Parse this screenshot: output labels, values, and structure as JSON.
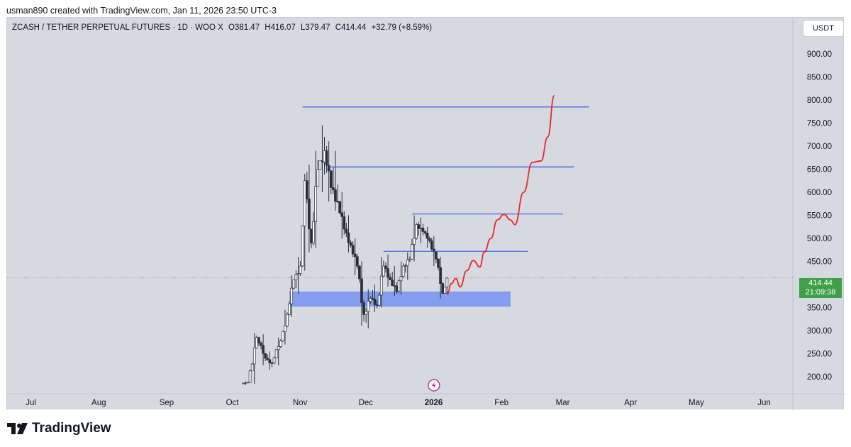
{
  "credit": "usman890 created with TradingView.com, Jan 11, 2026 23:50 UTC-3",
  "header": {
    "symbol": "ZCASH / TETHER PERPETUAL FUTURES · 1D · WOO X",
    "open": "O381.47",
    "high": "H416.07",
    "low": "L379.47",
    "close": "C414.44",
    "change": "+32.79 (+8.59%)"
  },
  "currency_button": "USDT",
  "price_tag": {
    "price": "414.44",
    "countdown": "21:09:38"
  },
  "brand": {
    "name": "TradingView",
    "icon": "tradingview-logo-icon"
  },
  "colors": {
    "chart_bg": "#d6d9e0",
    "up": "#ffffff",
    "down": "#2a2e39",
    "level_line": "#2f5bea",
    "zone": "#7b96ef",
    "projection": "#ea2a2a",
    "price_tag": "#3fa049"
  },
  "chart_data": {
    "type": "candlestick",
    "title": "ZCASH / TETHER PERPETUAL FUTURES · 1D · WOO X",
    "y_axis": {
      "ticks": [
        200,
        250,
        300,
        350,
        400,
        450,
        500,
        550,
        600,
        650,
        700,
        750,
        800,
        850,
        900
      ],
      "tick_labels": [
        "200.00",
        "250.00",
        "300.00",
        "350.00",
        "400.00",
        "450.00",
        "500.00",
        "550.00",
        "600.00",
        "650.00",
        "700.00",
        "750.00",
        "800.00",
        "850.00",
        "900.00"
      ],
      "range": [
        185,
        960
      ]
    },
    "x_axis": {
      "labels": [
        "Jul",
        "Aug",
        "Sep",
        "Oct",
        "Nov",
        "Dec",
        "2026",
        "Feb",
        "Mar",
        "Apr",
        "May",
        "Jun"
      ],
      "label_dates": [
        "2025-07-01",
        "2025-08-01",
        "2025-09-01",
        "2025-10-01",
        "2025-11-01",
        "2025-12-01",
        "2026-01-01",
        "2026-02-01",
        "2026-03-01",
        "2026-04-01",
        "2026-05-01",
        "2026-06-01"
      ],
      "range": [
        "2025-06-24",
        "2026-06-18"
      ]
    },
    "ohlc_weekly_approx": [
      {
        "date": "2025-10-10",
        "o": 185,
        "h": 190,
        "l": 182,
        "c": 188
      },
      {
        "date": "2025-10-13",
        "o": 188,
        "h": 295,
        "l": 185,
        "c": 285
      },
      {
        "date": "2025-10-17",
        "o": 285,
        "h": 292,
        "l": 225,
        "c": 240
      },
      {
        "date": "2025-10-21",
        "o": 240,
        "h": 255,
        "l": 215,
        "c": 230
      },
      {
        "date": "2025-10-24",
        "o": 230,
        "h": 285,
        "l": 225,
        "c": 278
      },
      {
        "date": "2025-10-28",
        "o": 278,
        "h": 345,
        "l": 270,
        "c": 335
      },
      {
        "date": "2025-10-31",
        "o": 335,
        "h": 420,
        "l": 330,
        "c": 410
      },
      {
        "date": "2025-11-03",
        "o": 410,
        "h": 460,
        "l": 380,
        "c": 440
      },
      {
        "date": "2025-11-06",
        "o": 440,
        "h": 640,
        "l": 430,
        "c": 625
      },
      {
        "date": "2025-11-08",
        "o": 625,
        "h": 660,
        "l": 470,
        "c": 490
      },
      {
        "date": "2025-11-11",
        "o": 490,
        "h": 690,
        "l": 480,
        "c": 650
      },
      {
        "date": "2025-11-14",
        "o": 650,
        "h": 745,
        "l": 600,
        "c": 690
      },
      {
        "date": "2025-11-17",
        "o": 690,
        "h": 710,
        "l": 580,
        "c": 610
      },
      {
        "date": "2025-11-20",
        "o": 610,
        "h": 690,
        "l": 560,
        "c": 580
      },
      {
        "date": "2025-11-23",
        "o": 580,
        "h": 600,
        "l": 500,
        "c": 520
      },
      {
        "date": "2025-11-26",
        "o": 520,
        "h": 550,
        "l": 470,
        "c": 485
      },
      {
        "date": "2025-11-29",
        "o": 485,
        "h": 500,
        "l": 420,
        "c": 440
      },
      {
        "date": "2025-12-02",
        "o": 440,
        "h": 450,
        "l": 310,
        "c": 335
      },
      {
        "date": "2025-12-05",
        "o": 335,
        "h": 390,
        "l": 305,
        "c": 370
      },
      {
        "date": "2025-12-08",
        "o": 370,
        "h": 400,
        "l": 340,
        "c": 355
      },
      {
        "date": "2025-12-11",
        "o": 355,
        "h": 460,
        "l": 350,
        "c": 440
      },
      {
        "date": "2025-12-14",
        "o": 440,
        "h": 465,
        "l": 395,
        "c": 410
      },
      {
        "date": "2025-12-17",
        "o": 410,
        "h": 440,
        "l": 375,
        "c": 385
      },
      {
        "date": "2025-12-20",
        "o": 385,
        "h": 450,
        "l": 378,
        "c": 440
      },
      {
        "date": "2025-12-23",
        "o": 440,
        "h": 470,
        "l": 410,
        "c": 455
      },
      {
        "date": "2025-12-26",
        "o": 455,
        "h": 550,
        "l": 450,
        "c": 530
      },
      {
        "date": "2025-12-29",
        "o": 530,
        "h": 545,
        "l": 490,
        "c": 515
      },
      {
        "date": "2026-01-01",
        "o": 515,
        "h": 525,
        "l": 480,
        "c": 495
      },
      {
        "date": "2026-01-04",
        "o": 495,
        "h": 505,
        "l": 440,
        "c": 455
      },
      {
        "date": "2026-01-07",
        "o": 455,
        "h": 460,
        "l": 370,
        "c": 381
      },
      {
        "date": "2026-01-10",
        "o": 381,
        "h": 416,
        "l": 379,
        "c": 414
      }
    ],
    "level_lines": [
      {
        "price": 785,
        "from": "2025-11-06",
        "to": "2026-03-17"
      },
      {
        "price": 655,
        "from": "2025-11-18",
        "to": "2026-03-10"
      },
      {
        "price": 553,
        "from": "2025-12-26",
        "to": "2026-03-05"
      },
      {
        "price": 472,
        "from": "2025-12-13",
        "to": "2026-02-17"
      }
    ],
    "support_zone": {
      "from": "2025-10-31",
      "to": "2026-02-09",
      "low": 352,
      "high": 385
    },
    "current_price": 414.44,
    "projection_path": [
      {
        "date": "2026-01-11",
        "price": 378
      },
      {
        "date": "2026-01-13",
        "price": 402
      },
      {
        "date": "2026-01-15",
        "price": 413
      },
      {
        "date": "2026-01-17",
        "price": 395
      },
      {
        "date": "2026-01-20",
        "price": 430
      },
      {
        "date": "2026-01-23",
        "price": 452
      },
      {
        "date": "2026-01-26",
        "price": 438
      },
      {
        "date": "2026-01-28",
        "price": 470
      },
      {
        "date": "2026-01-31",
        "price": 500
      },
      {
        "date": "2026-02-03",
        "price": 540
      },
      {
        "date": "2026-02-06",
        "price": 552
      },
      {
        "date": "2026-02-09",
        "price": 540
      },
      {
        "date": "2026-02-11",
        "price": 530
      },
      {
        "date": "2026-02-15",
        "price": 600
      },
      {
        "date": "2026-02-19",
        "price": 665
      },
      {
        "date": "2026-02-23",
        "price": 668
      },
      {
        "date": "2026-02-26",
        "price": 720
      },
      {
        "date": "2026-03-01",
        "price": 810
      }
    ],
    "grid": false,
    "legend": "none"
  }
}
